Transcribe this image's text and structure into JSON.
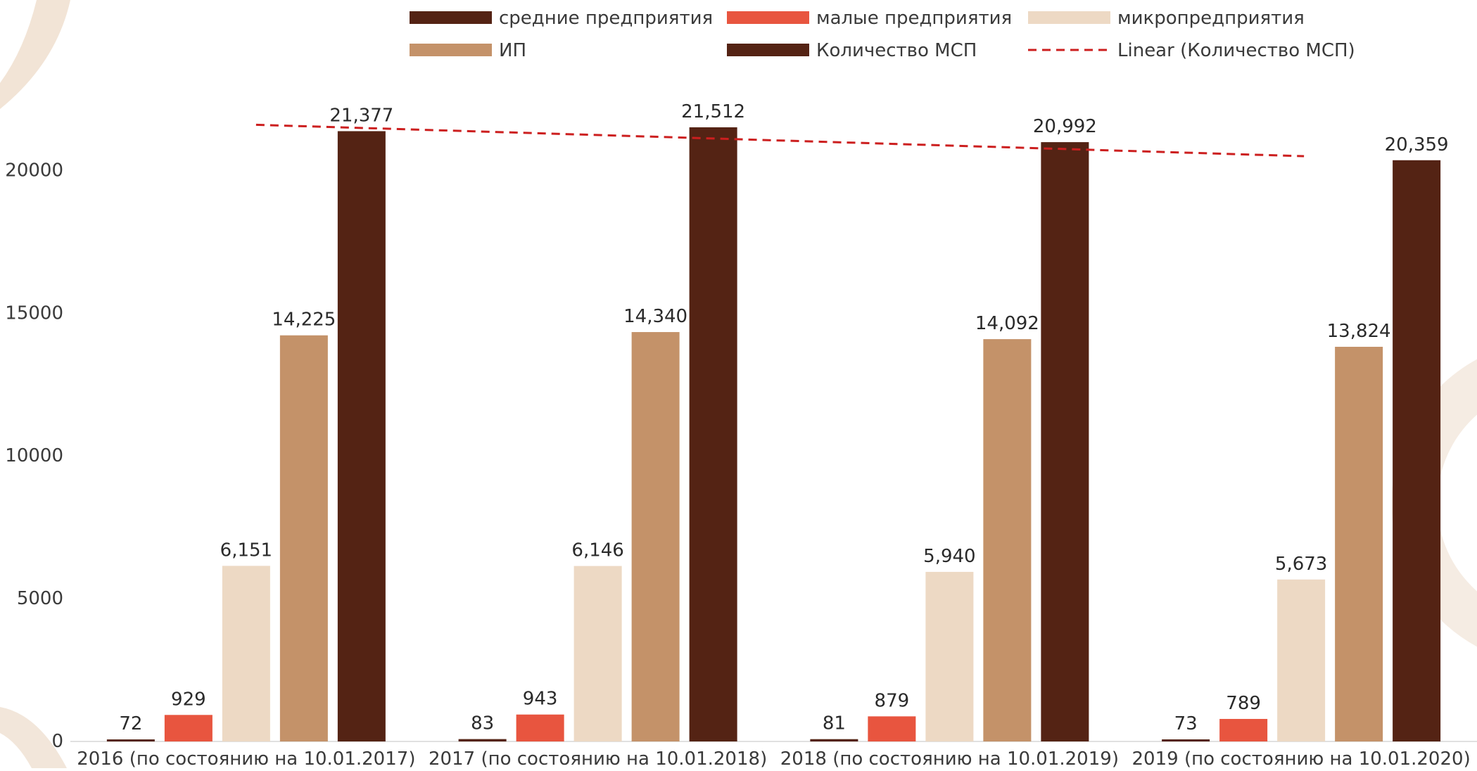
{
  "chart_data": {
    "type": "bar",
    "categories": [
      "2016 (по состоянию на 10.01.2017)",
      "2017 (по состоянию на 10.01.2018)",
      "2018 (по состоянию на 10.01.2019)",
      "2019 (по состоянию на 10.01.2020)"
    ],
    "series": [
      {
        "name": "средние предприятия",
        "values": [
          72,
          83,
          81,
          73
        ],
        "labels": [
          "72",
          "83",
          "81",
          "73"
        ],
        "color": "#542314"
      },
      {
        "name": "малые предприятия",
        "values": [
          929,
          943,
          879,
          789
        ],
        "labels": [
          "929",
          "943",
          "879",
          "789"
        ],
        "color": "#e8553f"
      },
      {
        "name": "микропредприятия",
        "values": [
          6151,
          6146,
          5940,
          5673
        ],
        "labels": [
          "6,151",
          "6,146",
          "5,940",
          "5,673"
        ],
        "color": "#edd9c4"
      },
      {
        "name": "ИП",
        "values": [
          14225,
          14340,
          14092,
          13824
        ],
        "labels": [
          "14,225",
          "14,340",
          "14,092",
          "13,824"
        ],
        "color": "#c49269"
      },
      {
        "name": "Количество МСП",
        "values": [
          21377,
          21512,
          20992,
          20359
        ],
        "labels": [
          "21,377",
          "21,512",
          "20,992",
          "20,359"
        ],
        "color": "#542314"
      }
    ],
    "trendline": {
      "name": "Linear (Количество МСП)",
      "series": "Количество МСП",
      "start": 21600,
      "end": 20500,
      "color": "#cc1f1f"
    },
    "yticks": [
      0,
      5000,
      10000,
      15000,
      20000
    ],
    "ylim": [
      0,
      24000
    ],
    "legend_position": "top",
    "grid": false,
    "title": "",
    "xlabel": "",
    "ylabel": ""
  }
}
